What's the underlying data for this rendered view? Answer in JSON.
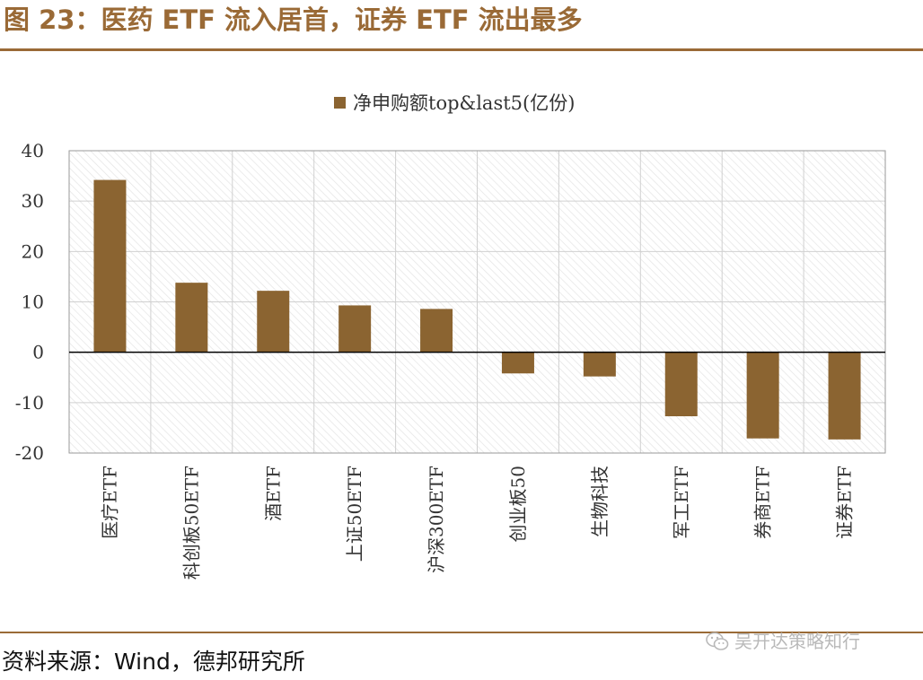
{
  "figure": {
    "title": "图 23：医药 ETF 流入居首，证券 ETF 流出最多",
    "source": "资料来源：Wind，德邦研究所",
    "watermark": "吴开达策略知行"
  },
  "colors": {
    "accent": "#9a6a36",
    "bar": "#8b6431",
    "grid": "#d0d0d0"
  },
  "chart_data": {
    "type": "bar",
    "categories": [
      "医疗ETF",
      "科创板50ETF",
      "酒ETF",
      "上证50ETF",
      "沪深300ETF",
      "创业板50",
      "生物科技",
      "军工ETF",
      "券商ETF",
      "证券ETF"
    ],
    "series": [
      {
        "name": "净申购额top&last5(亿份)",
        "values": [
          34.2,
          13.8,
          12.2,
          9.3,
          8.6,
          -4.2,
          -4.8,
          -12.7,
          -17.1,
          -17.3
        ]
      }
    ],
    "ylim": [
      -20,
      40
    ],
    "yticks": [
      "40",
      "30",
      "20",
      "10",
      "0",
      "-10",
      "-20"
    ],
    "xlabel": "",
    "ylabel": "",
    "grid": true,
    "legend_position": "top-center"
  }
}
